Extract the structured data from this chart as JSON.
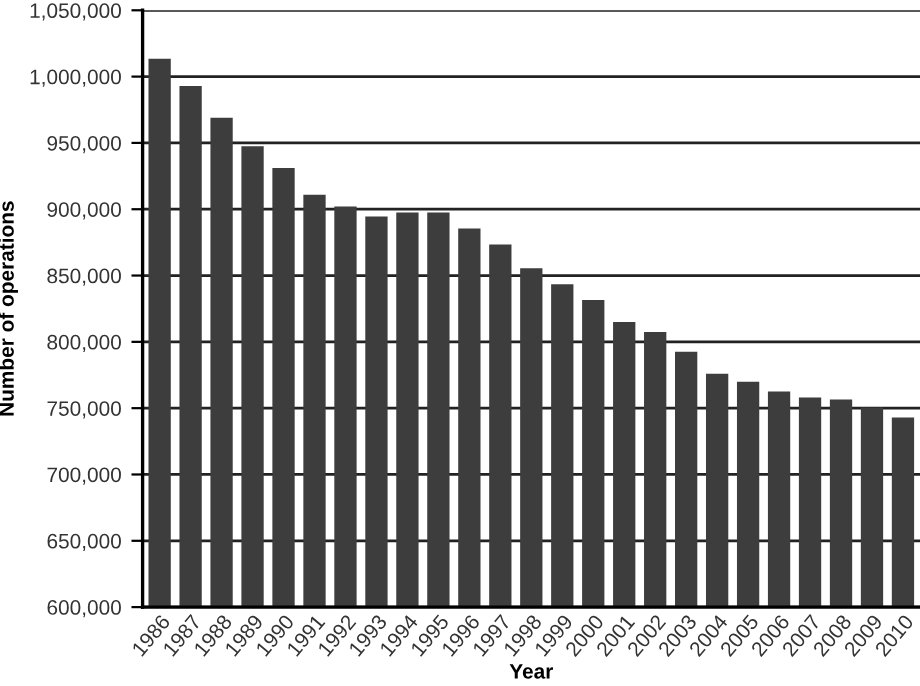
{
  "chart_data": {
    "type": "bar",
    "xlabel": "Year",
    "ylabel": "Number of operations",
    "categories": [
      "1986",
      "1987",
      "1988",
      "1989",
      "1990",
      "1991",
      "1992",
      "1993",
      "1994",
      "1995",
      "1996",
      "1997",
      "1998",
      "1999",
      "2000",
      "2001",
      "2002",
      "2003",
      "2004",
      "2005",
      "2006",
      "2007",
      "2008",
      "2009",
      "2010"
    ],
    "values": [
      1013500,
      993000,
      969000,
      947500,
      931000,
      911000,
      902000,
      894500,
      897500,
      897500,
      885500,
      873500,
      855500,
      843500,
      831500,
      815000,
      807500,
      792500,
      776000,
      770000,
      762500,
      758000,
      756500,
      750500,
      743000
    ],
    "color": "#3d3d3d",
    "ylim": [
      600000,
      1050000
    ],
    "yticks": [
      {
        "value": 600000,
        "label": "600,000"
      },
      {
        "value": 650000,
        "label": "650,000"
      },
      {
        "value": 700000,
        "label": "700,000"
      },
      {
        "value": 750000,
        "label": "750,000"
      },
      {
        "value": 800000,
        "label": "800,000"
      },
      {
        "value": 850000,
        "label": "850,000"
      },
      {
        "value": 900000,
        "label": "900,000"
      },
      {
        "value": 950000,
        "label": "950,000"
      },
      {
        "value": 1000000,
        "label": "1,000,000"
      },
      {
        "value": 1050000,
        "label": "1,050,000"
      }
    ],
    "grid": "y"
  }
}
